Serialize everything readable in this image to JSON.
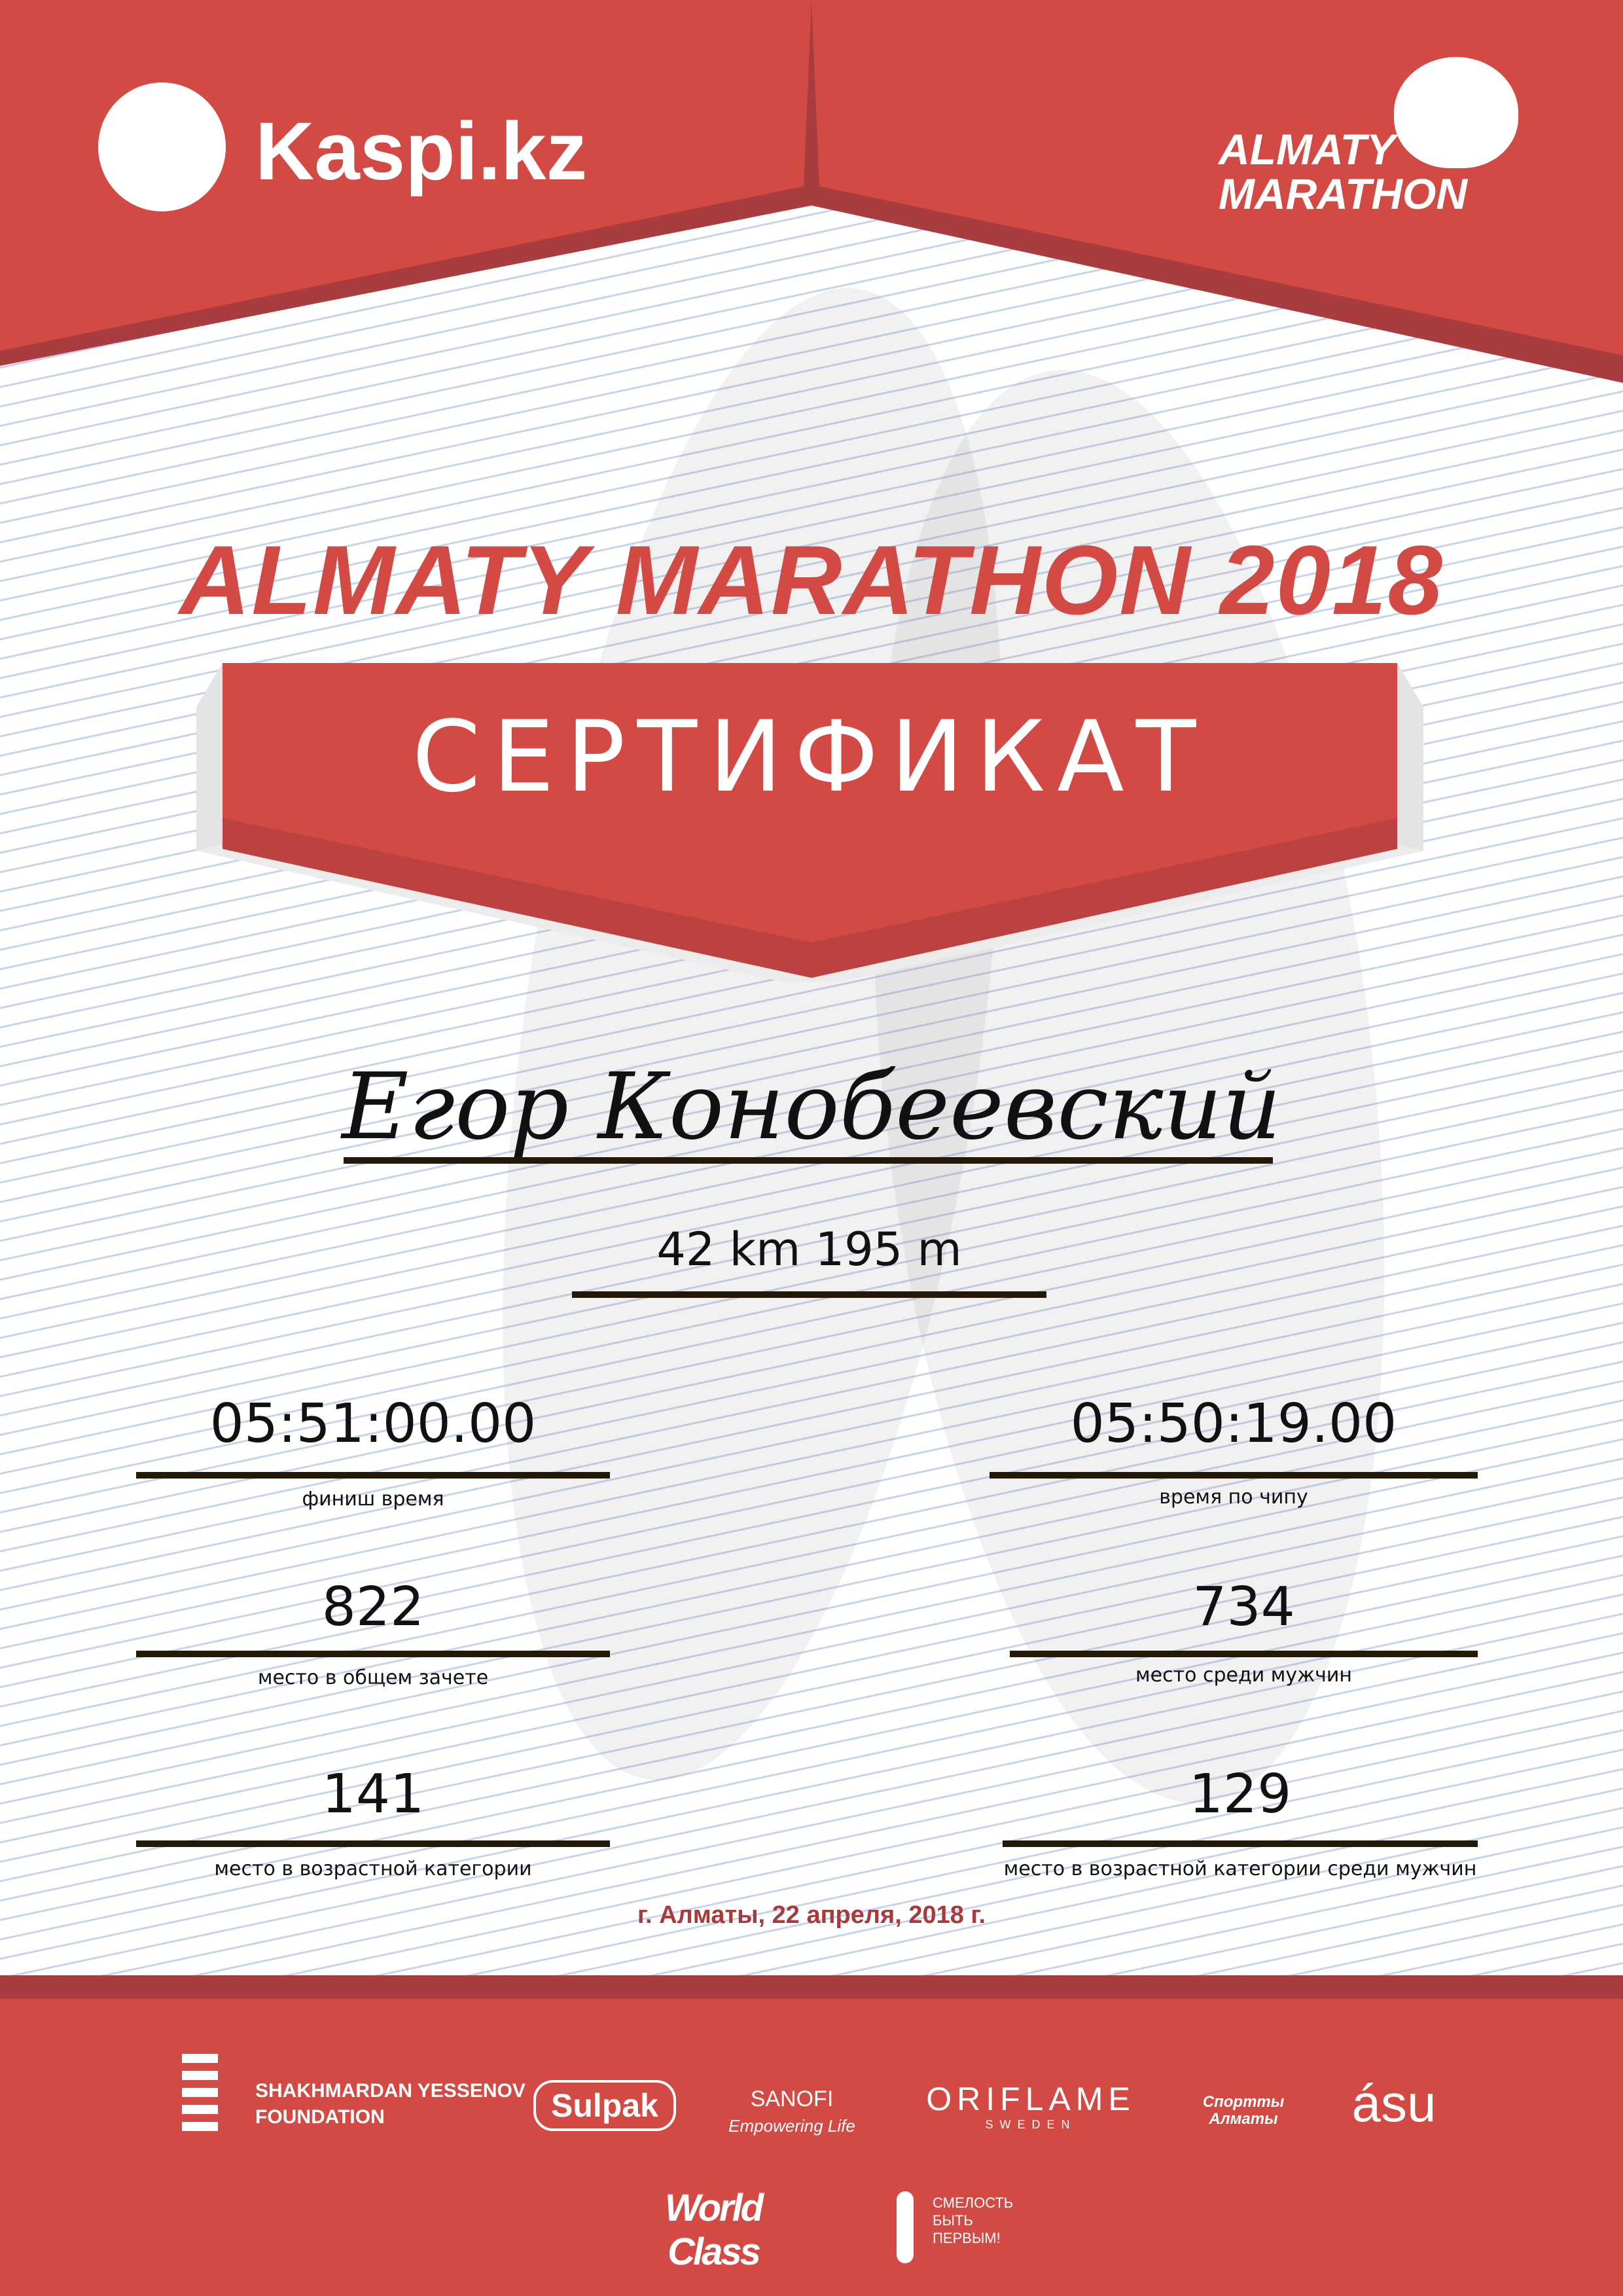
{
  "colors": {
    "brand_red": "#d24a43",
    "dark_red": "#a83c3e",
    "date_text": "#a83a3c"
  },
  "header": {
    "left_logo": "Kaspi.kz",
    "right_logo_line1": "ALMATY",
    "right_logo_line2": "MARATHON"
  },
  "title": "ALMATY MARATHON 2018",
  "banner": "СЕРТИФИКАТ",
  "participant": {
    "name": "Егор Конобеевский",
    "distance": "42 km 195 m"
  },
  "results": [
    {
      "value": "05:51:00.00",
      "label": "финиш время"
    },
    {
      "value": "05:50:19.00",
      "label": "время по чипу"
    },
    {
      "value": "822",
      "label": "место в общем зачете"
    },
    {
      "value": "734",
      "label": "место среди мужчин"
    },
    {
      "value": "141",
      "label": "место в возрастной категории"
    },
    {
      "value": "129",
      "label": "место в возрастной категории среди мужчин"
    }
  ],
  "date": "г. Алматы, 22 апреля, 2018 г.",
  "sponsors": {
    "yessenov_1": "SHAKHMARDAN YESSENOV",
    "yessenov_2": "FOUNDATION",
    "sulpak": "Sulpak",
    "sanofi": "SANOFI",
    "sanofi_tag": "Empowering Life",
    "oriflame": "ORIFLAME",
    "oriflame_sub": "SWEDEN",
    "sport_almaty_1": "Спортты",
    "sport_almaty_2": "Алматы",
    "asu": "ásu",
    "worldclass": "World Class",
    "fund_1": "СМЕЛОСТЬ",
    "fund_2": "БЫТЬ",
    "fund_3": "ПЕРВЫМ!"
  }
}
